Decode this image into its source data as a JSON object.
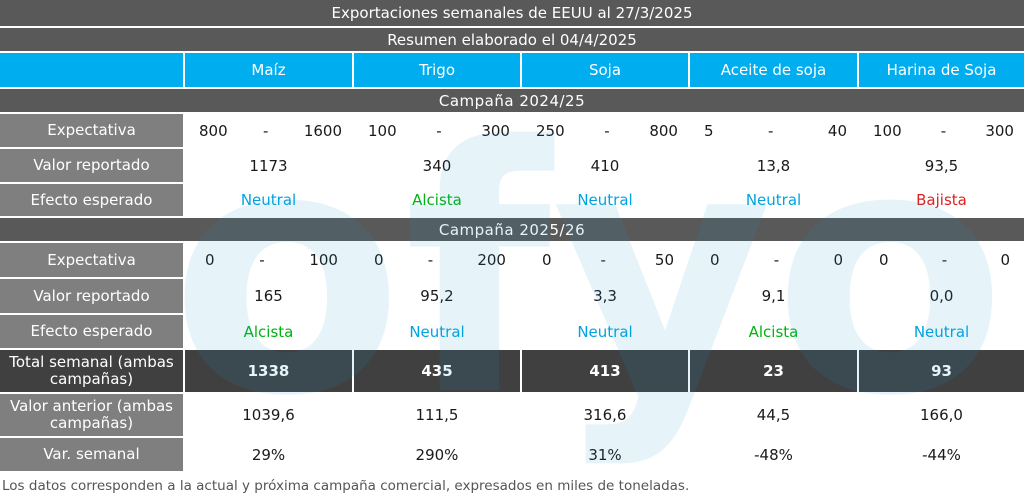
{
  "title": "Exportaciones semanales de EEUU al 27/3/2025",
  "subtitle": "Resumen elaborado el 04/4/2025",
  "columns": [
    "Maíz",
    "Trigo",
    "Soja",
    "Aceite de soja",
    "Harina de Soja"
  ],
  "campaign1": {
    "label": "Campaña  2024/25",
    "row_labels": {
      "expectativa": "Expectativa",
      "reportado": "Valor reportado",
      "efecto": "Efecto esperado"
    },
    "expectativa": [
      {
        "min": "800",
        "sep": "-",
        "max": "1600"
      },
      {
        "min": "100",
        "sep": "-",
        "max": "300"
      },
      {
        "min": "250",
        "sep": "-",
        "max": "800"
      },
      {
        "min": "5",
        "sep": "-",
        "max": "40"
      },
      {
        "min": "100",
        "sep": "-",
        "max": "300"
      }
    ],
    "reportado": [
      "1173",
      "340",
      "410",
      "13,8",
      "93,5"
    ],
    "efecto": [
      "Neutral",
      "Alcista",
      "Neutral",
      "Neutral",
      "Bajista"
    ]
  },
  "campaign2": {
    "label": "Campaña  2025/26",
    "row_labels": {
      "expectativa": "Expectativa",
      "reportado": "Valor reportado",
      "efecto": "Efecto esperado"
    },
    "expectativa": [
      {
        "min": "0",
        "sep": "-",
        "max": "100"
      },
      {
        "min": "0",
        "sep": "-",
        "max": "200"
      },
      {
        "min": "0",
        "sep": "-",
        "max": "50"
      },
      {
        "min": "0",
        "sep": "-",
        "max": "0"
      },
      {
        "min": "0",
        "sep": "-",
        "max": "0"
      }
    ],
    "reportado": [
      "165",
      "95,2",
      "3,3",
      "9,1",
      "0,0"
    ],
    "efecto": [
      "Alcista",
      "Neutral",
      "Neutral",
      "Alcista",
      "Neutral"
    ]
  },
  "totals": {
    "total_label": "Total semanal (ambas campañas)",
    "total": [
      "1338",
      "435",
      "413",
      "23",
      "93"
    ],
    "anterior_label": "Valor anterior (ambas campañas)",
    "anterior": [
      "1039,6",
      "111,5",
      "316,6",
      "44,5",
      "166,0"
    ],
    "var_label": "Var. semanal",
    "var": [
      "29%",
      "290%",
      "31%",
      "-48%",
      "-44%"
    ]
  },
  "note": "Los datos corresponden a la actual y próxima campaña comercial, expresados en miles de toneladas.",
  "watermark": "ofyo",
  "colors": {
    "header_blue": "#00aeef",
    "dark_gray": "#595959",
    "label_gray": "#7f7f7f",
    "total_gray": "#404040",
    "neutral": "#00a3e0",
    "alcista": "#00b312",
    "bajista": "#e02020"
  }
}
